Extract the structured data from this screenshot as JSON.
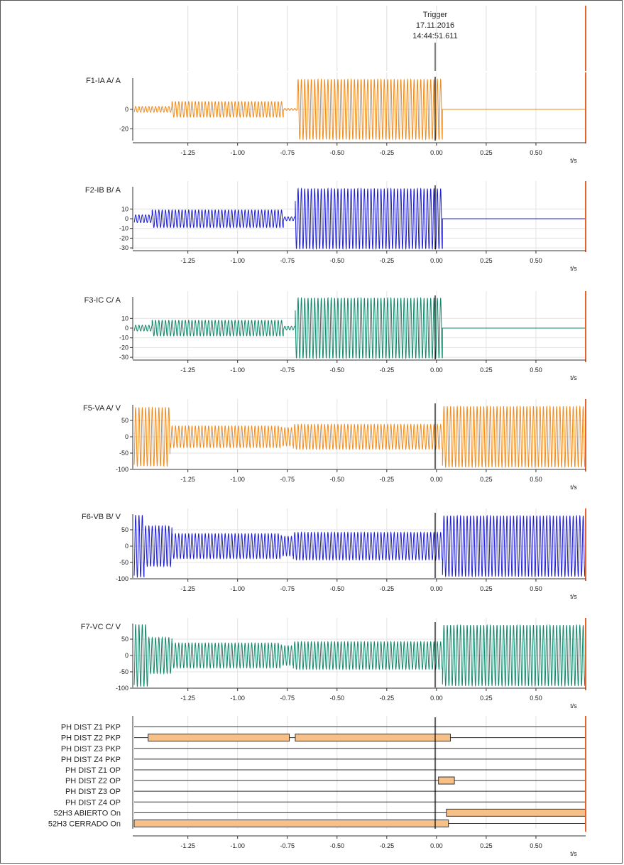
{
  "trigger": {
    "label": "Trigger",
    "date": "17.11.2016",
    "time": "14:44:51.611"
  },
  "chart_data": [
    {
      "type": "line",
      "title": "F1-IA A/ A",
      "color": "#f08b1d",
      "xlabel": "t/s",
      "xlim": [
        -1.52,
        0.75
      ],
      "xticks": [
        -1.25,
        -1.0,
        -0.75,
        -0.5,
        -0.25,
        0.0,
        0.25,
        0.5
      ],
      "xtick_labels": [
        "-1.25",
        "-1.00",
        "-0.75",
        "-0.50",
        "-0.25",
        "0.00",
        "0.25",
        "0.50"
      ],
      "ylim": [
        -32,
        32
      ],
      "yticks": [
        0,
        -20
      ],
      "ytick_labels": [
        "0",
        "-20"
      ],
      "segments": [
        {
          "t0": -1.52,
          "t1": -1.33,
          "amplitude": 3
        },
        {
          "t0": -1.33,
          "t1": -0.77,
          "amplitude": 8
        },
        {
          "t0": -0.77,
          "t1": -0.7,
          "amplitude": 1
        },
        {
          "t0": -0.7,
          "t1": 0.03,
          "amplitude": 31
        },
        {
          "t0": 0.03,
          "t1": 0.75,
          "amplitude": 0
        }
      ]
    },
    {
      "type": "line",
      "title": "F2-IB B/ A",
      "color": "#1f1fd1",
      "xlabel": "t/s",
      "xlim": [
        -1.52,
        0.75
      ],
      "xticks": [
        -1.25,
        -1.0,
        -0.75,
        -0.5,
        -0.25,
        0.0,
        0.25,
        0.5
      ],
      "xtick_labels": [
        "-1.25",
        "-1.00",
        "-0.75",
        "-0.50",
        "-0.25",
        "0.00",
        "0.25",
        "0.50"
      ],
      "ylim": [
        -32,
        32
      ],
      "yticks": [
        10,
        0,
        -10,
        -20,
        -30
      ],
      "ytick_labels": [
        "10",
        "0",
        "-10",
        "-20",
        "-30"
      ],
      "segments": [
        {
          "t0": -1.52,
          "t1": -1.43,
          "amplitude": 4
        },
        {
          "t0": -1.43,
          "t1": -0.77,
          "amplitude": 9
        },
        {
          "t0": -0.77,
          "t1": -0.71,
          "amplitude": 2
        },
        {
          "t0": -0.71,
          "t1": 0.03,
          "amplitude": 31
        },
        {
          "t0": 0.03,
          "t1": 0.75,
          "amplitude": 0
        }
      ]
    },
    {
      "type": "line",
      "title": "F3-IC C/ A",
      "color": "#13876b",
      "xlabel": "t/s",
      "xlim": [
        -1.52,
        0.75
      ],
      "xticks": [
        -1.25,
        -1.0,
        -0.75,
        -0.5,
        -0.25,
        0.0,
        0.25,
        0.5
      ],
      "xtick_labels": [
        "-1.25",
        "-1.00",
        "-0.75",
        "-0.50",
        "-0.25",
        "0.00",
        "0.25",
        "0.50"
      ],
      "ylim": [
        -32,
        32
      ],
      "yticks": [
        10,
        0,
        -10,
        -20,
        -30
      ],
      "ytick_labels": [
        "10",
        "0",
        "-10",
        "-20",
        "-30"
      ],
      "segments": [
        {
          "t0": -1.52,
          "t1": -1.43,
          "amplitude": 3
        },
        {
          "t0": -1.43,
          "t1": -0.77,
          "amplitude": 8
        },
        {
          "t0": -0.77,
          "t1": -0.71,
          "amplitude": 2
        },
        {
          "t0": -0.71,
          "t1": 0.03,
          "amplitude": 31
        },
        {
          "t0": 0.03,
          "t1": 0.75,
          "amplitude": 0
        }
      ]
    },
    {
      "type": "line",
      "title": "F5-VA A/ V",
      "color": "#f08b1d",
      "xlabel": "t/s",
      "xlim": [
        -1.52,
        0.75
      ],
      "xticks": [
        -1.25,
        -1.0,
        -0.75,
        -0.5,
        -0.25,
        0.0,
        0.25,
        0.5
      ],
      "xtick_labels": [
        "-1.25",
        "-1.00",
        "-0.75",
        "-0.50",
        "-0.25",
        "0.00",
        "0.25",
        "0.50"
      ],
      "ylim": [
        -100,
        95
      ],
      "yticks": [
        50,
        0,
        -50,
        -100
      ],
      "ytick_labels": [
        "50",
        "0",
        "-50",
        "-100"
      ],
      "segments": [
        {
          "t0": -1.52,
          "t1": -1.34,
          "amplitude": 90
        },
        {
          "t0": -1.34,
          "t1": -0.78,
          "amplitude": 33
        },
        {
          "t0": -0.78,
          "t1": -0.72,
          "amplitude": 28
        },
        {
          "t0": -0.72,
          "t1": 0.03,
          "amplitude": 38
        },
        {
          "t0": 0.03,
          "t1": 0.75,
          "amplitude": 93
        }
      ]
    },
    {
      "type": "line",
      "title": "F6-VB B/ V",
      "color": "#1f1fd1",
      "xlabel": "t/s",
      "xlim": [
        -1.52,
        0.75
      ],
      "xticks": [
        -1.25,
        -1.0,
        -0.75,
        -0.5,
        -0.25,
        0.0,
        0.25,
        0.5
      ],
      "xtick_labels": [
        "-1.25",
        "-1.00",
        "-0.75",
        "-0.50",
        "-0.25",
        "0.00",
        "0.25",
        "0.50"
      ],
      "ylim": [
        -100,
        95
      ],
      "yticks": [
        50,
        0,
        -50,
        -100
      ],
      "ytick_labels": [
        "50",
        "0",
        "-50",
        "-100"
      ],
      "segments": [
        {
          "t0": -1.52,
          "t1": -1.47,
          "amplitude": 95
        },
        {
          "t0": -1.47,
          "t1": -1.33,
          "amplitude": 62
        },
        {
          "t0": -1.33,
          "t1": -0.78,
          "amplitude": 38
        },
        {
          "t0": -0.78,
          "t1": -0.72,
          "amplitude": 30
        },
        {
          "t0": -0.72,
          "t1": 0.03,
          "amplitude": 42
        },
        {
          "t0": 0.03,
          "t1": 0.75,
          "amplitude": 93
        }
      ]
    },
    {
      "type": "line",
      "title": "F7-VC C/ V",
      "color": "#13876b",
      "xlabel": "t/s",
      "xlim": [
        -1.52,
        0.75
      ],
      "xticks": [
        -1.25,
        -1.0,
        -0.75,
        -0.5,
        -0.25,
        0.0,
        0.25,
        0.5
      ],
      "xtick_labels": [
        "-1.25",
        "-1.00",
        "-0.75",
        "-0.50",
        "-0.25",
        "0.00",
        "0.25",
        "0.50"
      ],
      "ylim": [
        -100,
        95
      ],
      "yticks": [
        50,
        0,
        -50,
        -100
      ],
      "ytick_labels": [
        "50",
        "0",
        "-50",
        "-100"
      ],
      "segments": [
        {
          "t0": -1.52,
          "t1": -1.45,
          "amplitude": 95
        },
        {
          "t0": -1.45,
          "t1": -1.33,
          "amplitude": 55
        },
        {
          "t0": -1.33,
          "t1": -0.78,
          "amplitude": 38
        },
        {
          "t0": -0.78,
          "t1": -0.72,
          "amplitude": 30
        },
        {
          "t0": -0.72,
          "t1": 0.03,
          "amplitude": 42
        },
        {
          "t0": 0.03,
          "t1": 0.75,
          "amplitude": 93
        }
      ]
    },
    {
      "type": "bar",
      "subtype": "digital-status",
      "xlabel": "t/s",
      "xlim": [
        -1.52,
        0.75
      ],
      "xticks": [
        -1.25,
        -1.0,
        -0.75,
        -0.5,
        -0.25,
        0.0,
        0.25,
        0.5
      ],
      "xtick_labels": [
        "-1.25",
        "-1.00",
        "-0.75",
        "-0.50",
        "-0.25",
        "0.00",
        "0.25",
        "0.50"
      ],
      "bar_color": "#f7c089",
      "channels": [
        {
          "name": "PH DIST Z1 PKP",
          "intervals": []
        },
        {
          "name": "PH DIST Z2 PKP",
          "intervals": [
            [
              -1.45,
              -0.74
            ],
            [
              -0.71,
              0.07
            ]
          ]
        },
        {
          "name": "PH DIST Z3 PKP",
          "intervals": []
        },
        {
          "name": "PH DIST Z4 PKP",
          "intervals": []
        },
        {
          "name": "PH DIST Z1 OP",
          "intervals": []
        },
        {
          "name": "PH DIST Z2 OP",
          "intervals": [
            [
              0.01,
              0.09
            ]
          ]
        },
        {
          "name": "PH DIST Z3 OP",
          "intervals": []
        },
        {
          "name": "PH DIST Z4 OP",
          "intervals": []
        },
        {
          "name": "52H3 ABIERTO On",
          "intervals": [
            [
              0.05,
              0.75
            ]
          ]
        },
        {
          "name": "52H3 CERRADO On",
          "intervals": [
            [
              -1.52,
              0.06
            ]
          ]
        }
      ]
    }
  ]
}
